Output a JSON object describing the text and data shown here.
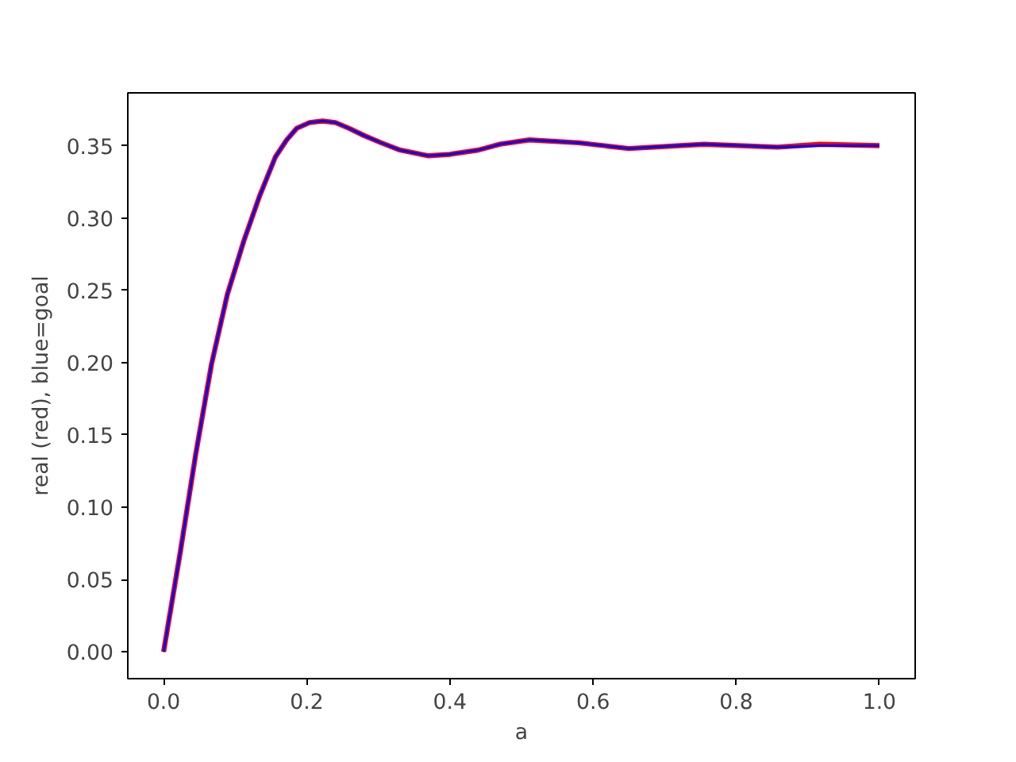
{
  "chart_data": {
    "type": "line",
    "xlabel": "a",
    "ylabel": "real (red), blue=goal",
    "xlim": [
      -0.05,
      1.05
    ],
    "ylim": [
      -0.0185,
      0.3865
    ],
    "xticks": [
      {
        "value": 0,
        "label": "0.0"
      },
      {
        "value": 0.2,
        "label": "0.2"
      },
      {
        "value": 0.4,
        "label": "0.4"
      },
      {
        "value": 0.6,
        "label": "0.6"
      },
      {
        "value": 0.8,
        "label": "0.8"
      },
      {
        "value": 1,
        "label": "1.0"
      }
    ],
    "yticks": [
      {
        "value": 0,
        "label": "0.00"
      },
      {
        "value": 0.05,
        "label": "0.05"
      },
      {
        "value": 0.1,
        "label": "0.10"
      },
      {
        "value": 0.15,
        "label": "0.15"
      },
      {
        "value": 0.2,
        "label": "0.20"
      },
      {
        "value": 0.25,
        "label": "0.25"
      },
      {
        "value": 0.3,
        "label": "0.30"
      },
      {
        "value": 0.35,
        "label": "0.35"
      }
    ],
    "grid": false,
    "line_style": "solid",
    "marker": "none",
    "x": [
      0,
      0.023,
      0.045,
      0.067,
      0.089,
      0.112,
      0.134,
      0.156,
      0.172,
      0.186,
      0.204,
      0.222,
      0.24,
      0.259,
      0.28,
      0.304,
      0.33,
      0.37,
      0.4,
      0.44,
      0.47,
      0.511,
      0.58,
      0.65,
      0.755,
      0.858,
      0.917,
      1.0
    ],
    "series": [
      {
        "color": "#ff0000",
        "values": [
          0,
          0.068,
          0.137,
          0.199,
          0.247,
          0.284,
          0.315,
          0.342,
          0.354,
          0.362,
          0.366,
          0.367,
          0.366,
          0.362,
          0.357,
          0.352,
          0.347,
          0.343,
          0.344,
          0.347,
          0.351,
          0.354,
          0.352,
          0.348,
          0.351,
          0.349,
          0.351,
          0.35
        ]
      },
      {
        "color": "#0000ff",
        "values": [
          0,
          0.068,
          0.137,
          0.199,
          0.247,
          0.284,
          0.315,
          0.342,
          0.354,
          0.362,
          0.366,
          0.367,
          0.366,
          0.362,
          0.357,
          0.352,
          0.347,
          0.343,
          0.344,
          0.347,
          0.351,
          0.354,
          0.352,
          0.348,
          0.351,
          0.349,
          0.35,
          0.35
        ]
      }
    ]
  }
}
